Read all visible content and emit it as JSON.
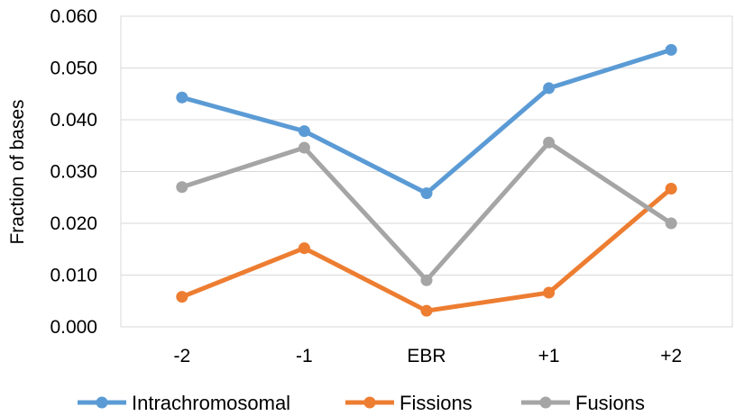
{
  "chart_data": {
    "type": "line",
    "categories": [
      "-2",
      "-1",
      "EBR",
      "+1",
      "+2"
    ],
    "series": [
      {
        "name": "Intrachromosomal",
        "values": [
          0.0443,
          0.0378,
          0.0258,
          0.0461,
          0.0535
        ],
        "color": "#5b9bd5"
      },
      {
        "name": "Fissions",
        "values": [
          0.0058,
          0.0152,
          0.0031,
          0.0066,
          0.0267
        ],
        "color": "#ed7d31"
      },
      {
        "name": "Fusions",
        "values": [
          0.027,
          0.0346,
          0.009,
          0.0356,
          0.02
        ],
        "color": "#a5a5a5"
      }
    ],
    "title": "",
    "xlabel": "",
    "ylabel": "Fraction of bases",
    "ylim": [
      0,
      0.06
    ],
    "yticks": [
      "0.000",
      "0.010",
      "0.020",
      "0.030",
      "0.040",
      "0.050",
      "0.060"
    ],
    "grid": true,
    "legend_position": "bottom"
  }
}
